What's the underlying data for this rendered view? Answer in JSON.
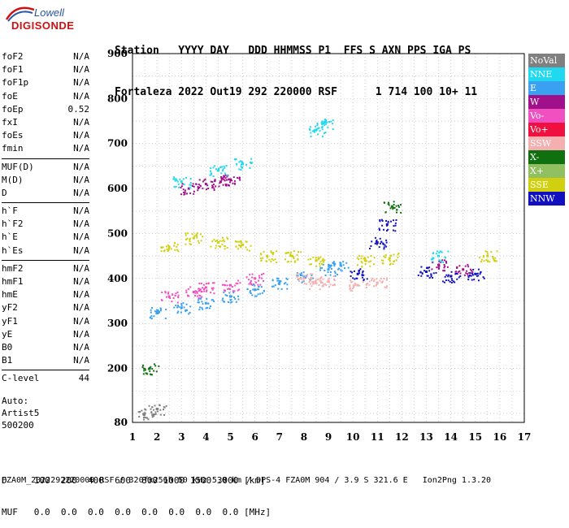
{
  "logo": {
    "top": "Lowell",
    "bottom": "DIGISONDE"
  },
  "header": {
    "line1": "Station   YYYY DAY   DDD HHMMSS P1  FFS S AXN PPS IGA PS",
    "line2": "Fortaleza 2022 Out19 292 220000 RSF      1 714 100 10+ 11"
  },
  "params": [
    {
      "label": "foF2",
      "value": "N/A"
    },
    {
      "label": "foF1",
      "value": "N/A"
    },
    {
      "label": "foF1p",
      "value": "N/A"
    },
    {
      "label": "foE",
      "value": "N/A"
    },
    {
      "label": "foEp",
      "value": "0.52"
    },
    {
      "label": "fxI",
      "value": "N/A"
    },
    {
      "label": "foEs",
      "value": "N/A"
    },
    {
      "label": "fmin",
      "value": "N/A"
    },
    {
      "sep": true
    },
    {
      "label": "MUF(D)",
      "value": "N/A"
    },
    {
      "label": "M(D)",
      "value": "N/A"
    },
    {
      "label": "D",
      "value": "N/A"
    },
    {
      "sep": true
    },
    {
      "label": "h`F",
      "value": "N/A"
    },
    {
      "label": "h`F2",
      "value": "N/A"
    },
    {
      "label": "h`E",
      "value": "N/A"
    },
    {
      "label": "h`Es",
      "value": "N/A"
    },
    {
      "sep": true
    },
    {
      "label": "hmF2",
      "value": "N/A"
    },
    {
      "label": "hmF1",
      "value": "N/A"
    },
    {
      "label": "hmE",
      "value": "N/A"
    },
    {
      "label": "yF2",
      "value": "N/A"
    },
    {
      "label": "yF1",
      "value": "N/A"
    },
    {
      "label": "yE",
      "value": "N/A"
    },
    {
      "label": "B0",
      "value": "N/A"
    },
    {
      "label": "B1",
      "value": "N/A"
    },
    {
      "sep": true
    },
    {
      "label": "C-level",
      "value": "44"
    }
  ],
  "auto": {
    "line1": "Auto:",
    "line2": "Artist5",
    "line3": "500200"
  },
  "legend": [
    {
      "label": "NoVal",
      "color": "#808080"
    },
    {
      "label": "NNE",
      "color": "#20d8f0"
    },
    {
      "label": "E",
      "color": "#3aa0f0"
    },
    {
      "label": "W",
      "color": "#a0108a"
    },
    {
      "label": "Vo-",
      "color": "#f050c0"
    },
    {
      "label": "Vo+",
      "color": "#f01040"
    },
    {
      "label": "SSW",
      "color": "#f4b0b0"
    },
    {
      "label": "X-",
      "color": "#107010"
    },
    {
      "label": "X+",
      "color": "#90c060"
    },
    {
      "label": "SSE",
      "color": "#d0d010"
    },
    {
      "label": "NNW",
      "color": "#1010c0"
    }
  ],
  "bottom": {
    "d_line": "D     100  200  400  600  800 1000 1500 3000 [km]",
    "muf_line": "MUF   0.0  0.0  0.0  0.0  0.0  0.0  0.0  0.0 [MHz]"
  },
  "footer": "FZA0M_2022292220000.RSF / 320fx256h 50 kHz 5.0 km / DPS-4 FZA0M 904 / 3.9 S 321.6 E   Ion2Png 1.3.20",
  "chart_data": {
    "type": "scatter",
    "xlabel": "",
    "ylabel": "",
    "xlim": [
      1,
      17
    ],
    "ylim": [
      80,
      900
    ],
    "x_ticks": [
      1,
      2,
      3,
      4,
      5,
      6,
      7,
      8,
      9,
      10,
      11,
      12,
      13,
      14,
      15,
      16,
      17
    ],
    "y_ticks": [
      80,
      200,
      300,
      400,
      500,
      600,
      700,
      800,
      900
    ],
    "grid": true,
    "series": [
      {
        "name": "E",
        "color": "#3aa0f0",
        "points": [
          [
            2,
            325
          ],
          [
            3,
            335
          ],
          [
            4,
            345
          ],
          [
            5,
            360
          ],
          [
            6,
            375
          ],
          [
            7,
            390
          ],
          [
            8,
            405
          ],
          [
            9,
            420
          ],
          [
            9.5,
            430
          ]
        ]
      },
      {
        "name": "SSE",
        "color": "#d0d010",
        "points": [
          [
            2.5,
            470
          ],
          [
            3.5,
            490
          ],
          [
            4.5,
            480
          ],
          [
            5.5,
            475
          ],
          [
            6.5,
            450
          ],
          [
            7.5,
            450
          ],
          [
            8.5,
            440
          ],
          [
            10.5,
            440
          ],
          [
            11.5,
            445
          ],
          [
            15.5,
            450
          ]
        ]
      },
      {
        "name": "W",
        "color": "#a0108a",
        "points": [
          [
            3.3,
            600
          ],
          [
            4,
            610
          ],
          [
            4.6,
            615
          ],
          [
            5,
            620
          ],
          [
            13.5,
            430
          ],
          [
            14.5,
            420
          ]
        ]
      },
      {
        "name": "NNE",
        "color": "#20d8f0",
        "points": [
          [
            3,
            615
          ],
          [
            4.5,
            640
          ],
          [
            5.5,
            655
          ],
          [
            8.5,
            730
          ],
          [
            8.8,
            745
          ],
          [
            13.5,
            450
          ]
        ]
      },
      {
        "name": "Vo-",
        "color": "#f050c0",
        "points": [
          [
            2.5,
            360
          ],
          [
            3.5,
            370
          ],
          [
            4,
            380
          ],
          [
            5,
            385
          ],
          [
            6,
            400
          ]
        ]
      },
      {
        "name": "SSW",
        "color": "#f4b0b0",
        "points": [
          [
            8,
            400
          ],
          [
            8.5,
            390
          ],
          [
            9,
            395
          ],
          [
            10.2,
            385
          ],
          [
            11,
            390
          ]
        ]
      },
      {
        "name": "NNW",
        "color": "#1010c0",
        "points": [
          [
            10.2,
            410
          ],
          [
            11,
            480
          ],
          [
            11.4,
            520
          ],
          [
            13,
            415
          ],
          [
            14,
            405
          ],
          [
            15,
            410
          ]
        ]
      },
      {
        "name": "X-",
        "color": "#107010",
        "points": [
          [
            1.7,
            200
          ],
          [
            11.6,
            560
          ]
        ]
      },
      {
        "name": "NoVal",
        "color": "#808080",
        "points": [
          [
            1.5,
            100
          ],
          [
            2,
            110
          ]
        ]
      }
    ]
  }
}
